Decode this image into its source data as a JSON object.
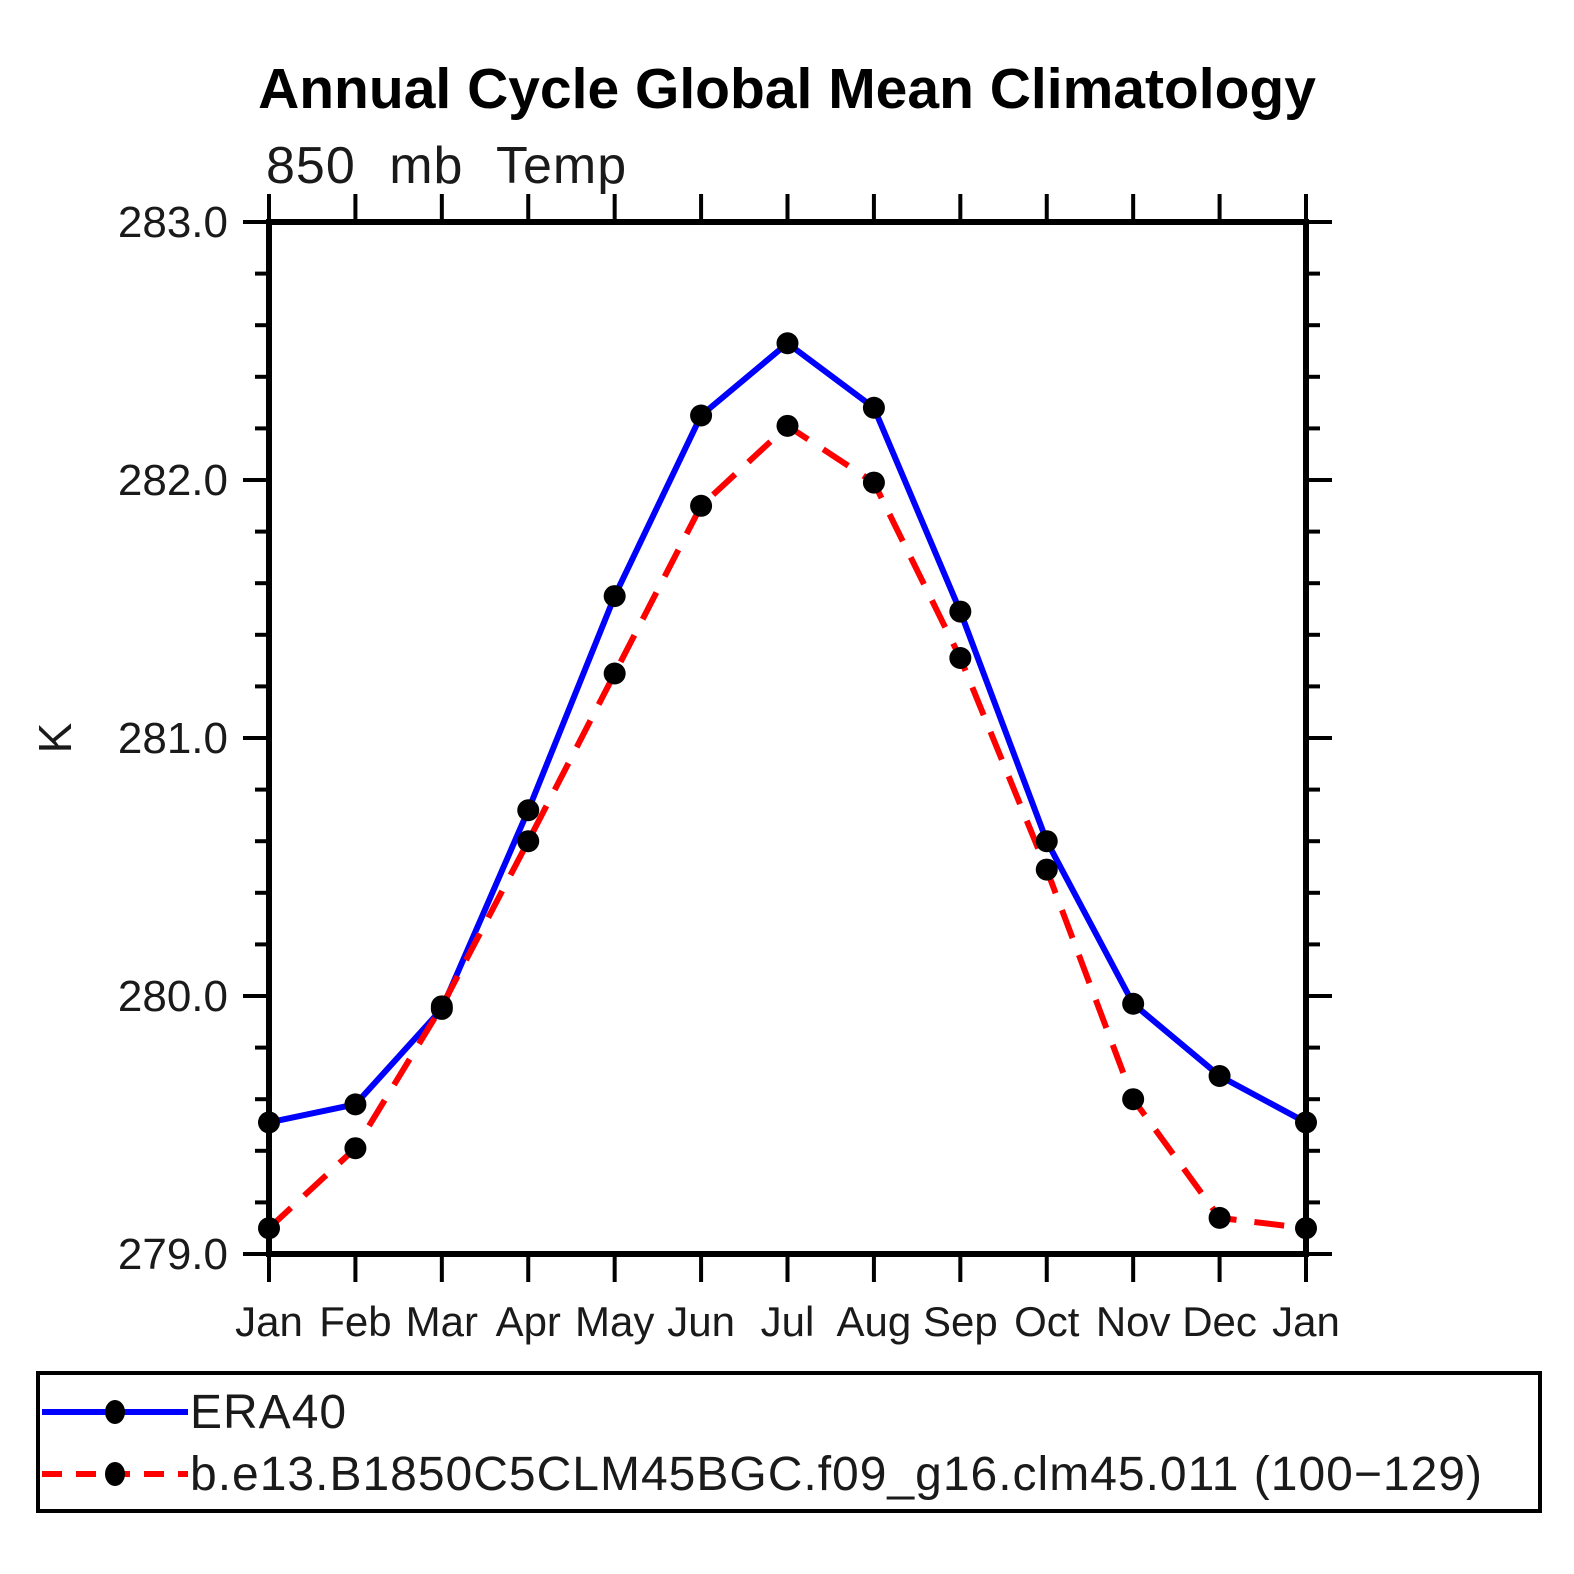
{
  "page": {
    "background": "#ffffff"
  },
  "chart_data": {
    "type": "line",
    "title": "Annual Cycle Global Mean Climatology",
    "subtitle": "850 mb Temp",
    "xlabel": "",
    "ylabel": "K",
    "categories": [
      "Jan",
      "Feb",
      "Mar",
      "Apr",
      "May",
      "Jun",
      "Jul",
      "Aug",
      "Sep",
      "Oct",
      "Nov",
      "Dec",
      "Jan"
    ],
    "ylim": [
      279.0,
      283.0
    ],
    "ytick_interval": 1.0,
    "ytick_minor_interval": 0.2,
    "ytick_labels": [
      "283.0",
      "282.0",
      "281.0",
      "280.0",
      "279.0"
    ],
    "grid": false,
    "legend_position": "bottom",
    "marker_color": "#000000",
    "axis_color": "#000000",
    "series": [
      {
        "name": "ERA40",
        "color": "#0000FF",
        "style": "solid",
        "marker": "circle",
        "values": [
          279.51,
          279.58,
          279.95,
          280.72,
          281.55,
          282.25,
          282.53,
          282.28,
          281.49,
          280.6,
          279.97,
          279.69,
          279.51
        ]
      },
      {
        "name": "b.e13.B1850C5CLM45BGC.f09_g16.clm45.011 (100−129)",
        "color": "#FF0000",
        "style": "dashed",
        "marker": "circle",
        "values": [
          279.1,
          279.41,
          279.96,
          280.6,
          281.25,
          281.9,
          282.21,
          281.99,
          281.31,
          280.49,
          279.6,
          279.14,
          279.1
        ]
      }
    ]
  }
}
